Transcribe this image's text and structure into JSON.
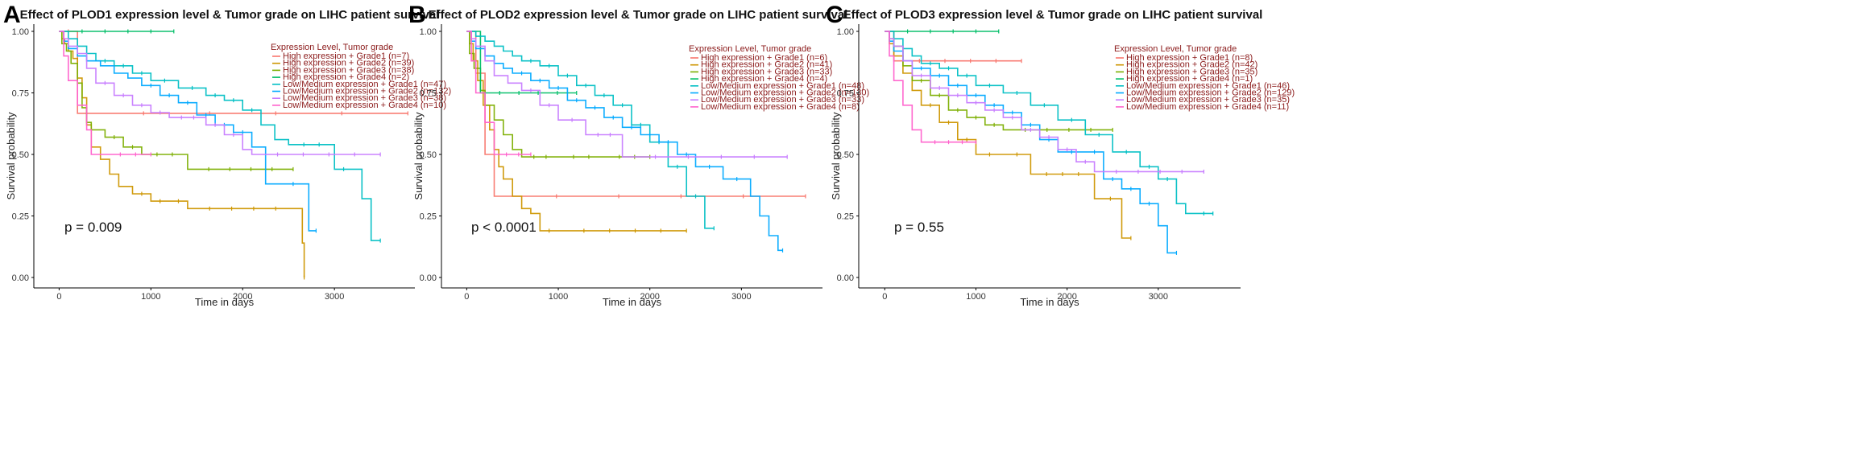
{
  "figure": {
    "colors": [
      "#F8766D",
      "#CD9600",
      "#7CAE00",
      "#00BE67",
      "#00BFC4",
      "#00A9FF",
      "#C77CFF",
      "#FF61CC"
    ]
  },
  "chart_data": [
    {
      "type": "line",
      "step": true,
      "panel": "A",
      "title": "Effect of PLOD1 expression level & Tumor grade on LIHC patient survival",
      "xlabel": "Time in days",
      "ylabel": "Survival probability",
      "xlim": [
        -100,
        3850
      ],
      "ylim": [
        0,
        1
      ],
      "xticks": [
        0,
        1000,
        2000,
        3000
      ],
      "yticks": [
        0.0,
        0.25,
        0.5,
        0.75,
        1.0
      ],
      "ytick_labels": [
        "0.00",
        "0.25",
        "0.50",
        "0.75",
        "1.00"
      ],
      "pvalue": "p = 0.009",
      "legend_title": "Expression Level, Tumor grade",
      "series": [
        {
          "name": "High expression + Grade1 (n=7)",
          "x": [
            0,
            200,
            3800
          ],
          "y": [
            1.0,
            0.667,
            0.667
          ]
        },
        {
          "name": "High expression + Grade2 (n=39)",
          "x": [
            0,
            30,
            60,
            100,
            150,
            200,
            250,
            300,
            350,
            450,
            550,
            650,
            800,
            1000,
            1200,
            1400,
            2600,
            2650,
            2670
          ],
          "y": [
            1.0,
            0.97,
            0.95,
            0.92,
            0.89,
            0.81,
            0.73,
            0.62,
            0.53,
            0.48,
            0.42,
            0.37,
            0.34,
            0.31,
            0.31,
            0.28,
            0.28,
            0.14,
            0.0
          ]
        },
        {
          "name": "High expression + Grade3 (n=38)",
          "x": [
            0,
            30,
            80,
            130,
            200,
            250,
            300,
            350,
            500,
            700,
            900,
            1400,
            2550
          ],
          "y": [
            1.0,
            0.95,
            0.92,
            0.87,
            0.79,
            0.69,
            0.63,
            0.6,
            0.57,
            0.53,
            0.5,
            0.44,
            0.44
          ]
        },
        {
          "name": "High expression + Grade4 (n=2)",
          "x": [
            0,
            1250
          ],
          "y": [
            1.0,
            1.0
          ]
        },
        {
          "name": "Low/Medium expression + Grade1 (n=47)",
          "x": [
            0,
            100,
            200,
            300,
            400,
            600,
            800,
            1000,
            1300,
            1600,
            1800,
            2000,
            2200,
            2350,
            2500,
            3000,
            3200,
            3300,
            3400,
            3500
          ],
          "y": [
            1.0,
            0.97,
            0.94,
            0.91,
            0.88,
            0.86,
            0.83,
            0.8,
            0.77,
            0.74,
            0.72,
            0.68,
            0.62,
            0.56,
            0.54,
            0.44,
            0.44,
            0.32,
            0.15,
            0.15
          ]
        },
        {
          "name": "Low/Medium expression + Grade2 (n=132)",
          "x": [
            0,
            50,
            100,
            200,
            300,
            450,
            600,
            750,
            900,
            1100,
            1300,
            1500,
            1700,
            1900,
            2100,
            2200,
            2250,
            2400,
            2700,
            2720,
            2800
          ],
          "y": [
            1.0,
            0.96,
            0.93,
            0.9,
            0.88,
            0.86,
            0.83,
            0.81,
            0.78,
            0.74,
            0.71,
            0.66,
            0.62,
            0.59,
            0.53,
            0.53,
            0.38,
            0.38,
            0.38,
            0.19,
            0.19
          ]
        },
        {
          "name": "Low/Medium expression + Grade3 (n=38)",
          "x": [
            0,
            50,
            100,
            200,
            300,
            400,
            600,
            800,
            1000,
            1200,
            1600,
            1800,
            2000,
            2100,
            3500
          ],
          "y": [
            1.0,
            0.97,
            0.94,
            0.91,
            0.85,
            0.79,
            0.74,
            0.7,
            0.67,
            0.65,
            0.62,
            0.58,
            0.52,
            0.5,
            0.5
          ]
        },
        {
          "name": "Low/Medium expression + Grade4 (n=10)",
          "x": [
            0,
            50,
            100,
            200,
            300,
            350,
            500,
            1000
          ],
          "y": [
            1.0,
            0.9,
            0.8,
            0.7,
            0.6,
            0.5,
            0.5,
            0.5
          ]
        }
      ]
    },
    {
      "type": "line",
      "step": true,
      "panel": "B",
      "title": "Effect of PLOD2 expression level & Tumor grade on LIHC patient survival",
      "xlabel": "Time in days",
      "ylabel": "Survival probability",
      "xlim": [
        -100,
        3850
      ],
      "ylim": [
        0,
        1
      ],
      "xticks": [
        0,
        1000,
        2000,
        3000
      ],
      "yticks": [
        0.0,
        0.25,
        0.5,
        0.75,
        1.0
      ],
      "ytick_labels": [
        "0.00",
        "0.25",
        "0.50",
        "0.75",
        "1.00"
      ],
      "pvalue": "p < 0.0001",
      "legend_title": "Expression Level, Tumor grade",
      "series": [
        {
          "name": "High expression + Grade1 (n=6)",
          "x": [
            0,
            100,
            200,
            300,
            3700
          ],
          "y": [
            1.0,
            0.83,
            0.5,
            0.33,
            0.33
          ]
        },
        {
          "name": "High expression + Grade2 (n=41)",
          "x": [
            0,
            30,
            70,
            120,
            180,
            250,
            300,
            350,
            400,
            500,
            600,
            700,
            800,
            1000,
            2400
          ],
          "y": [
            1.0,
            0.95,
            0.88,
            0.8,
            0.7,
            0.6,
            0.52,
            0.45,
            0.4,
            0.33,
            0.28,
            0.26,
            0.19,
            0.19,
            0.19
          ]
        },
        {
          "name": "High expression + Grade3 (n=33)",
          "x": [
            0,
            30,
            80,
            150,
            200,
            300,
            400,
            500,
            600,
            1000,
            1500,
            2000
          ],
          "y": [
            1.0,
            0.91,
            0.85,
            0.76,
            0.7,
            0.64,
            0.58,
            0.52,
            0.49,
            0.49,
            0.49,
            0.49
          ]
        },
        {
          "name": "High expression + Grade4 (n=4)",
          "x": [
            0,
            150,
            1200
          ],
          "y": [
            1.0,
            0.75,
            0.75
          ]
        },
        {
          "name": "Low/Medium expression + Grade1 (n=48)",
          "x": [
            0,
            100,
            200,
            300,
            400,
            500,
            600,
            800,
            1000,
            1200,
            1400,
            1600,
            1800,
            2000,
            2200,
            2400,
            2600,
            2700
          ],
          "y": [
            1.0,
            0.98,
            0.96,
            0.94,
            0.92,
            0.9,
            0.88,
            0.86,
            0.82,
            0.78,
            0.74,
            0.7,
            0.62,
            0.55,
            0.45,
            0.33,
            0.2,
            0.2
          ]
        },
        {
          "name": "Low/Medium expression + Grade2 (n=130)",
          "x": [
            0,
            50,
            100,
            200,
            300,
            400,
            500,
            700,
            900,
            1100,
            1300,
            1500,
            1700,
            1900,
            2100,
            2300,
            2500,
            2800,
            3100,
            3200,
            3300,
            3400,
            3450
          ],
          "y": [
            1.0,
            0.96,
            0.93,
            0.9,
            0.87,
            0.85,
            0.83,
            0.8,
            0.77,
            0.72,
            0.69,
            0.65,
            0.61,
            0.58,
            0.55,
            0.5,
            0.45,
            0.4,
            0.33,
            0.25,
            0.17,
            0.11,
            0.11
          ]
        },
        {
          "name": "Low/Medium expression + Grade3 (n=33)",
          "x": [
            0,
            50,
            100,
            200,
            300,
            450,
            600,
            800,
            1000,
            1300,
            1700,
            3500
          ],
          "y": [
            1.0,
            0.97,
            0.94,
            0.88,
            0.82,
            0.79,
            0.76,
            0.7,
            0.64,
            0.58,
            0.49,
            0.49
          ]
        },
        {
          "name": "Low/Medium expression + Grade4 (n=8)",
          "x": [
            0,
            50,
            100,
            200,
            300,
            700
          ],
          "y": [
            1.0,
            0.88,
            0.75,
            0.63,
            0.5,
            0.5
          ]
        }
      ]
    },
    {
      "type": "line",
      "step": true,
      "panel": "C",
      "title": "Effect of PLOD3 expression level & Tumor grade on LIHC patient survival",
      "xlabel": "Time in days",
      "ylabel": "Survival probability",
      "xlim": [
        -100,
        3850
      ],
      "ylim": [
        0,
        1
      ],
      "xticks": [
        0,
        1000,
        2000,
        3000
      ],
      "yticks": [
        0.0,
        0.25,
        0.5,
        0.75,
        1.0
      ],
      "ytick_labels": [
        "0.00",
        "0.25",
        "0.50",
        "0.75",
        "1.00"
      ],
      "pvalue": "p = 0.55",
      "legend_title": "Expression Level, Tumor grade",
      "series": [
        {
          "name": "High expression + Grade1 (n=8)",
          "x": [
            0,
            100,
            1500
          ],
          "y": [
            1.0,
            0.88,
            0.88
          ]
        },
        {
          "name": "High expression + Grade2 (n=42)",
          "x": [
            0,
            50,
            100,
            200,
            300,
            400,
            600,
            800,
            1000,
            1300,
            1600,
            2300,
            2350,
            2600,
            2700
          ],
          "y": [
            1.0,
            0.95,
            0.9,
            0.83,
            0.76,
            0.7,
            0.63,
            0.56,
            0.5,
            0.5,
            0.42,
            0.32,
            0.32,
            0.16,
            0.16
          ]
        },
        {
          "name": "High expression + Grade3 (n=35)",
          "x": [
            0,
            50,
            100,
            200,
            300,
            500,
            700,
            900,
            1100,
            1300,
            2500
          ],
          "y": [
            1.0,
            0.97,
            0.94,
            0.86,
            0.8,
            0.74,
            0.68,
            0.65,
            0.62,
            0.6,
            0.6
          ]
        },
        {
          "name": "High expression + Grade4 (n=1)",
          "x": [
            0,
            1250
          ],
          "y": [
            1.0,
            1.0
          ]
        },
        {
          "name": "Low/Medium expression + Grade1 (n=46)",
          "x": [
            0,
            100,
            200,
            300,
            400,
            600,
            800,
            1000,
            1300,
            1600,
            1900,
            2200,
            2500,
            2800,
            3000,
            3200,
            3300,
            3400,
            3600
          ],
          "y": [
            1.0,
            0.97,
            0.93,
            0.9,
            0.87,
            0.85,
            0.82,
            0.78,
            0.75,
            0.7,
            0.64,
            0.58,
            0.51,
            0.45,
            0.4,
            0.3,
            0.26,
            0.26,
            0.26
          ]
        },
        {
          "name": "Low/Medium expression + Grade2 (n=129)",
          "x": [
            0,
            50,
            100,
            200,
            300,
            500,
            700,
            900,
            1100,
            1300,
            1500,
            1700,
            1900,
            2200,
            2400,
            2600,
            2800,
            3000,
            3100,
            3200
          ],
          "y": [
            1.0,
            0.96,
            0.92,
            0.88,
            0.85,
            0.82,
            0.78,
            0.74,
            0.7,
            0.67,
            0.62,
            0.56,
            0.51,
            0.51,
            0.4,
            0.36,
            0.3,
            0.21,
            0.1,
            0.1
          ]
        },
        {
          "name": "Low/Medium expression + Grade3 (n=35)",
          "x": [
            0,
            50,
            100,
            200,
            300,
            500,
            700,
            900,
            1100,
            1300,
            1500,
            1700,
            1900,
            2100,
            2300,
            3500
          ],
          "y": [
            1.0,
            0.97,
            0.94,
            0.88,
            0.82,
            0.77,
            0.74,
            0.71,
            0.68,
            0.65,
            0.6,
            0.57,
            0.52,
            0.47,
            0.43,
            0.43
          ]
        },
        {
          "name": "Low/Medium expression + Grade4 (n=11)",
          "x": [
            0,
            50,
            100,
            200,
            300,
            400,
            1000
          ],
          "y": [
            1.0,
            0.9,
            0.8,
            0.7,
            0.6,
            0.55,
            0.55
          ]
        }
      ]
    }
  ]
}
